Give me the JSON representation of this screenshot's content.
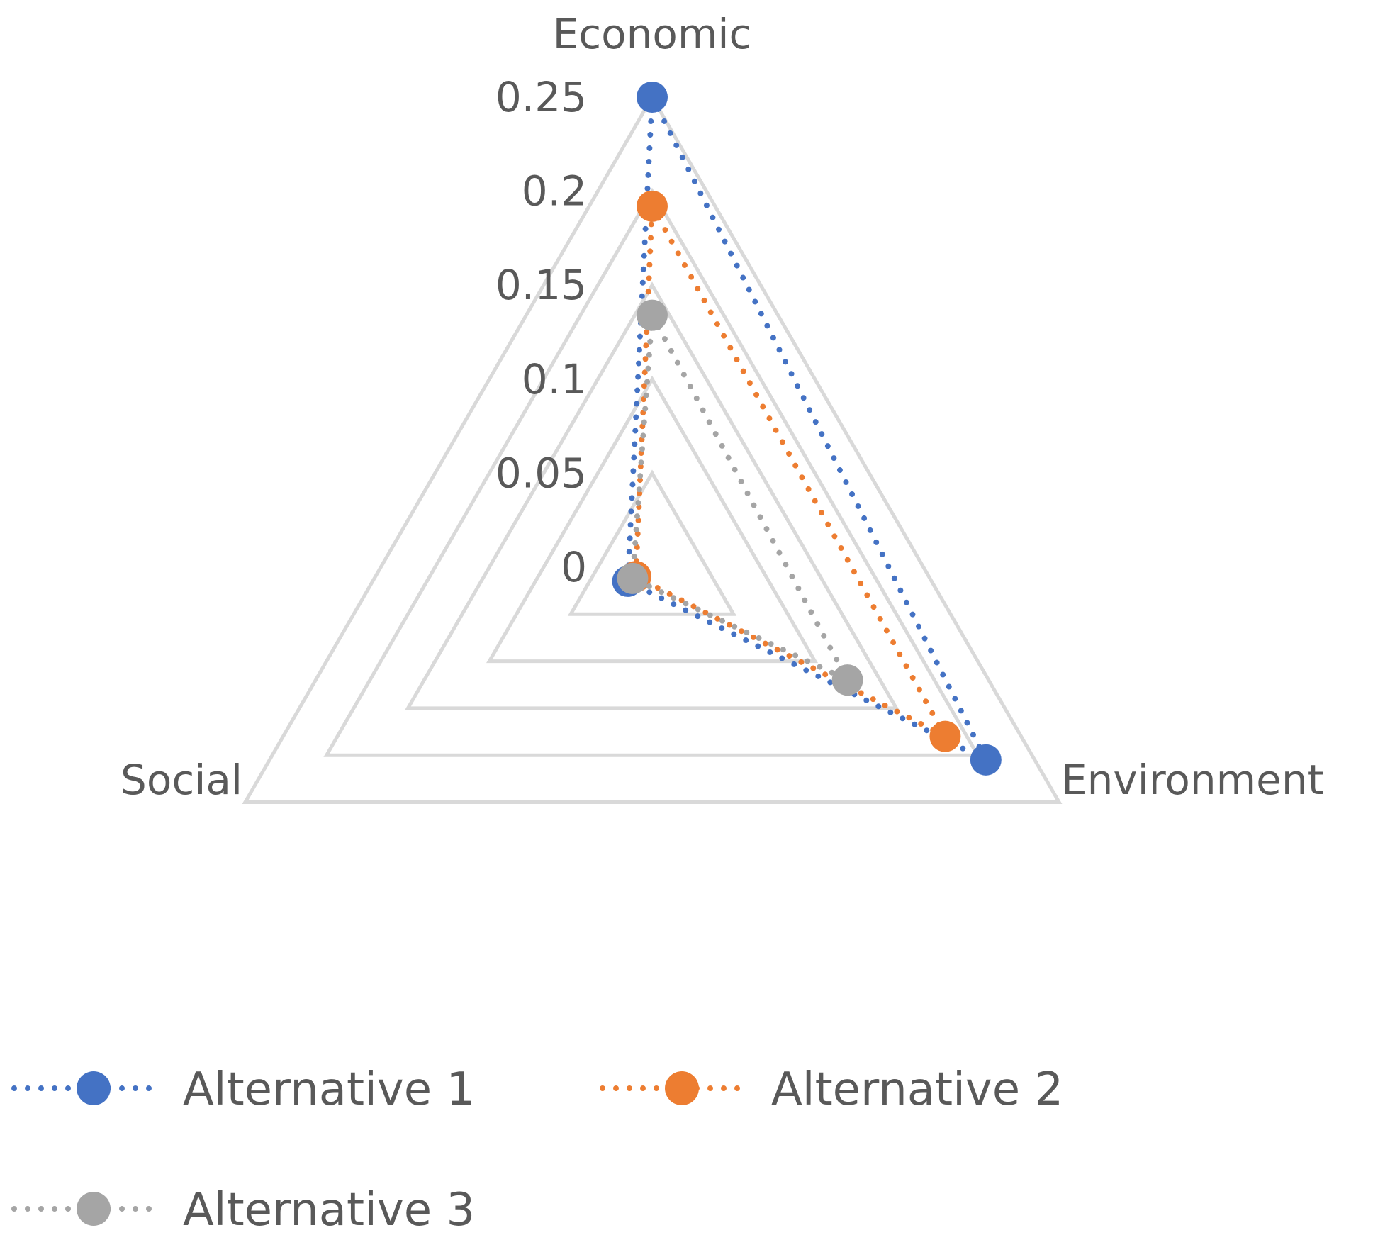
{
  "chart_data": {
    "type": "radar",
    "title": "",
    "categories": [
      "Economic",
      "Environment",
      "Social"
    ],
    "rlim": [
      0,
      0.25
    ],
    "ticks": [
      "0",
      "0.05",
      "0.1",
      "0.15",
      "0.2",
      "0.25"
    ],
    "tick_values": [
      0,
      0.05,
      0.1,
      0.15,
      0.2,
      0.25
    ],
    "grid": true,
    "legend_position": "bottom",
    "series": [
      {
        "name": "Alternative 1",
        "color": "#4472C4",
        "values": [
          0.25,
          0.205,
          0.015
        ]
      },
      {
        "name": "Alternative 2",
        "color": "#ED7D31",
        "values": [
          0.192,
          0.18,
          0.01
        ]
      },
      {
        "name": "Alternative 3",
        "color": "#A5A5A5",
        "values": [
          0.134,
          0.12,
          0.012
        ]
      }
    ]
  }
}
